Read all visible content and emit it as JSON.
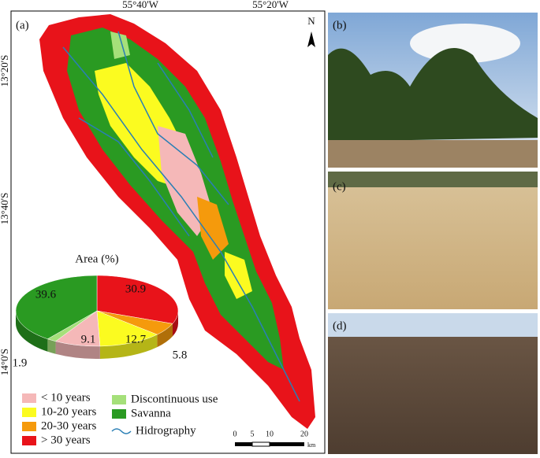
{
  "panels": {
    "a": "(a)",
    "b": "(b)",
    "c": "(c)",
    "d": "(d)"
  },
  "coordinates": {
    "top": [
      "55°40'W",
      "55°20'W"
    ],
    "left": [
      "13°20'S",
      "13°40'S",
      "14°0'S"
    ]
  },
  "north": "N",
  "scale_bar": {
    "labels": [
      "0",
      "5",
      "10",
      "20"
    ],
    "unit": "km"
  },
  "hydrography_label": "Hidrography",
  "chart_data": {
    "type": "pie",
    "title": "Area (%)",
    "categories": [
      "> 30 years",
      "20-30 years",
      "10-20 years",
      "< 10 years",
      "Discontinuous use",
      "Savanna"
    ],
    "values": [
      30.9,
      5.8,
      12.7,
      9.1,
      1.9,
      39.6
    ],
    "colors": [
      "#e8131a",
      "#f59a0c",
      "#fbfb20",
      "#f5b8b8",
      "#a5e07a",
      "#2a9a22"
    ]
  }
}
